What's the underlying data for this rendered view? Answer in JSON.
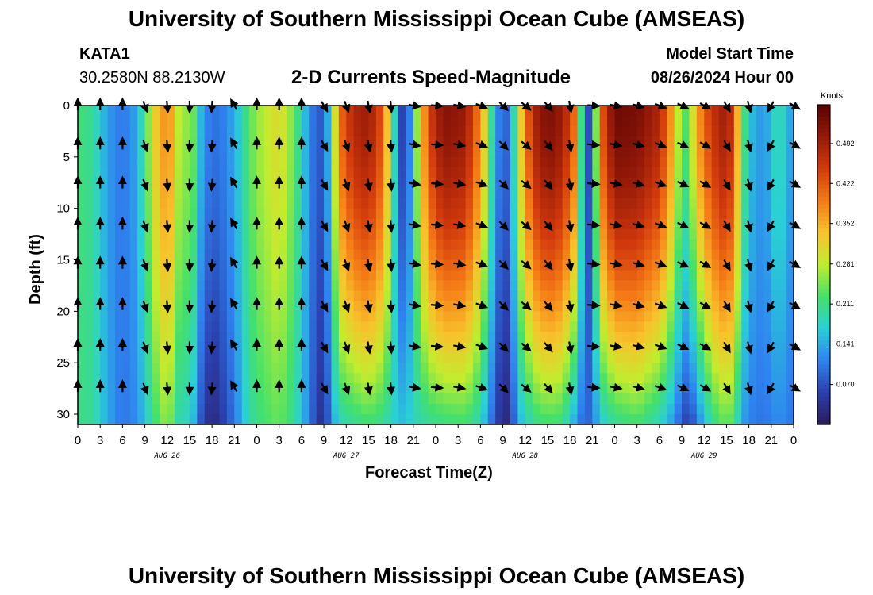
{
  "header": {
    "title": "University of Southern Mississippi Ocean Cube (AMSEAS)",
    "station_id": "KATA1",
    "station_coords": "30.2580N  88.2130W",
    "product": "2-D Currents Speed-Magnitude",
    "model_start_label": "Model Start Time",
    "model_start_value": "08/26/2024 Hour 00"
  },
  "footer": {
    "title": "University of Southern Mississippi Ocean Cube (AMSEAS)"
  },
  "chart_data": {
    "type": "heatmap",
    "title": "2-D Currents Speed-Magnitude",
    "xlabel": "Forecast Time(Z)",
    "ylabel": "Depth (ft)",
    "x_hours": [
      0,
      96
    ],
    "y_depth_ft": [
      0,
      31
    ],
    "xtick_labels": [
      "0",
      "3",
      "6",
      "9",
      "12",
      "15",
      "18",
      "21",
      "0",
      "3",
      "6",
      "9",
      "12",
      "15",
      "18",
      "21",
      "0",
      "3",
      "6",
      "9",
      "12",
      "15",
      "18",
      "21",
      "0",
      "3",
      "6",
      "9",
      "12",
      "15",
      "18",
      "21",
      "0"
    ],
    "ytick_values": [
      0,
      5,
      10,
      15,
      20,
      25,
      30
    ],
    "ytick_labels": [
      "0",
      "5",
      "10",
      "15",
      "20",
      "25",
      "30"
    ],
    "day_labels": [
      {
        "hour": 12,
        "label": "AUG 26"
      },
      {
        "hour": 36,
        "label": "AUG 27"
      },
      {
        "hour": 60,
        "label": "AUG 28"
      },
      {
        "hour": 84,
        "label": "AUG 29"
      }
    ],
    "colorbar": {
      "unit": "Knots",
      "range": [
        0.0,
        0.56
      ],
      "tick_values": [
        0.492,
        0.422,
        0.352,
        0.281,
        0.211,
        0.141,
        0.07
      ],
      "tick_labels": [
        "0.492",
        "0.422",
        "0.352",
        "0.281",
        "0.211",
        "0.141",
        "0.070"
      ],
      "colors": [
        "#2c1b5a",
        "#2b3fae",
        "#2f83f0",
        "#2ad0d6",
        "#44e06a",
        "#c2ec2e",
        "#f8c22c",
        "#f57b16",
        "#d23a0c",
        "#951908",
        "#580303"
      ]
    },
    "column_speeds_knots": [
      {
        "hour": 0,
        "top": 0.22,
        "bottom": 0.21
      },
      {
        "hour": 2,
        "top": 0.2,
        "bottom": 0.2
      },
      {
        "hour": 4,
        "top": 0.13,
        "bottom": 0.14
      },
      {
        "hour": 6,
        "top": 0.1,
        "bottom": 0.1
      },
      {
        "hour": 8,
        "top": 0.14,
        "bottom": 0.12
      },
      {
        "hour": 9,
        "top": 0.22,
        "bottom": 0.16
      },
      {
        "hour": 11,
        "top": 0.36,
        "bottom": 0.24
      },
      {
        "hour": 12,
        "top": 0.38,
        "bottom": 0.26
      },
      {
        "hour": 13,
        "top": 0.34,
        "bottom": 0.22
      },
      {
        "hour": 14,
        "top": 0.22,
        "bottom": 0.16
      },
      {
        "hour": 15,
        "top": 0.3,
        "bottom": 0.2
      },
      {
        "hour": 16,
        "top": 0.18,
        "bottom": 0.1
      },
      {
        "hour": 17,
        "top": 0.12,
        "bottom": 0.05
      },
      {
        "hour": 18,
        "top": 0.1,
        "bottom": 0.02
      },
      {
        "hour": 19,
        "top": 0.1,
        "bottom": 0.04
      },
      {
        "hour": 21,
        "top": 0.14,
        "bottom": 0.1
      },
      {
        "hour": 23,
        "top": 0.23,
        "bottom": 0.19
      },
      {
        "hour": 24,
        "top": 0.26,
        "bottom": 0.21
      },
      {
        "hour": 27,
        "top": 0.31,
        "bottom": 0.24
      },
      {
        "hour": 29,
        "top": 0.24,
        "bottom": 0.2
      },
      {
        "hour": 31,
        "top": 0.12,
        "bottom": 0.11
      },
      {
        "hour": 32,
        "top": 0.08,
        "bottom": 0.05
      },
      {
        "hour": 33,
        "top": 0.08,
        "bottom": 0.03
      },
      {
        "hour": 34,
        "top": 0.2,
        "bottom": 0.12
      },
      {
        "hour": 35,
        "top": 0.4,
        "bottom": 0.18
      },
      {
        "hour": 37,
        "top": 0.48,
        "bottom": 0.2
      },
      {
        "hour": 39,
        "top": 0.5,
        "bottom": 0.22
      },
      {
        "hour": 41,
        "top": 0.42,
        "bottom": 0.2
      },
      {
        "hour": 43,
        "top": 0.1,
        "bottom": 0.16
      },
      {
        "hour": 44,
        "top": 0.02,
        "bottom": 0.16
      },
      {
        "hour": 45,
        "top": 0.2,
        "bottom": 0.18
      },
      {
        "hour": 47,
        "top": 0.44,
        "bottom": 0.2
      },
      {
        "hour": 49,
        "top": 0.52,
        "bottom": 0.21
      },
      {
        "hour": 52,
        "top": 0.5,
        "bottom": 0.22
      },
      {
        "hour": 54,
        "top": 0.38,
        "bottom": 0.18
      },
      {
        "hour": 56,
        "top": 0.14,
        "bottom": 0.07
      },
      {
        "hour": 57,
        "top": 0.08,
        "bottom": 0.02
      },
      {
        "hour": 58,
        "top": 0.1,
        "bottom": 0.03
      },
      {
        "hour": 59,
        "top": 0.28,
        "bottom": 0.14
      },
      {
        "hour": 61,
        "top": 0.48,
        "bottom": 0.2
      },
      {
        "hour": 63,
        "top": 0.53,
        "bottom": 0.22
      },
      {
        "hour": 65,
        "top": 0.5,
        "bottom": 0.21
      },
      {
        "hour": 67,
        "top": 0.38,
        "bottom": 0.12
      },
      {
        "hour": 68,
        "top": 0.04,
        "bottom": 0.08
      },
      {
        "hour": 69,
        "top": 0.1,
        "bottom": 0.1
      },
      {
        "hour": 70,
        "top": 0.4,
        "bottom": 0.16
      },
      {
        "hour": 72,
        "top": 0.54,
        "bottom": 0.2
      },
      {
        "hour": 75,
        "top": 0.53,
        "bottom": 0.22
      },
      {
        "hour": 78,
        "top": 0.48,
        "bottom": 0.18
      },
      {
        "hour": 80,
        "top": 0.34,
        "bottom": 0.12
      },
      {
        "hour": 81,
        "top": 0.22,
        "bottom": 0.07
      },
      {
        "hour": 82,
        "top": 0.24,
        "bottom": 0.05
      },
      {
        "hour": 83,
        "top": 0.36,
        "bottom": 0.1
      },
      {
        "hour": 85,
        "top": 0.46,
        "bottom": 0.2
      },
      {
        "hour": 87,
        "top": 0.5,
        "bottom": 0.24
      },
      {
        "hour": 88,
        "top": 0.44,
        "bottom": 0.22
      },
      {
        "hour": 89,
        "top": 0.26,
        "bottom": 0.14
      },
      {
        "hour": 90,
        "top": 0.16,
        "bottom": 0.11
      },
      {
        "hour": 92,
        "top": 0.12,
        "bottom": 0.1
      },
      {
        "hour": 94,
        "top": 0.2,
        "bottom": 0.12
      },
      {
        "hour": 96,
        "top": 0.12,
        "bottom": 0.1
      }
    ],
    "vector_depths_ft": [
      0,
      3.8,
      7.6,
      11.6,
      15.4,
      19.4,
      23.4,
      27.4
    ],
    "vector_hours": [
      0,
      3,
      6,
      9,
      12,
      15,
      18,
      21,
      24,
      27,
      30,
      33,
      36,
      39,
      42,
      45,
      48,
      51,
      54,
      57,
      60,
      63,
      66,
      69,
      72,
      75,
      78,
      81,
      84,
      87,
      90,
      93,
      96
    ],
    "vector_direction_deg_by_hour": [
      0,
      0,
      0,
      160,
      175,
      180,
      185,
      330,
      0,
      0,
      0,
      150,
      160,
      170,
      175,
      100,
      95,
      100,
      110,
      135,
      130,
      140,
      170,
      95,
      100,
      105,
      110,
      115,
      120,
      150,
      165,
      210,
      120
    ]
  }
}
